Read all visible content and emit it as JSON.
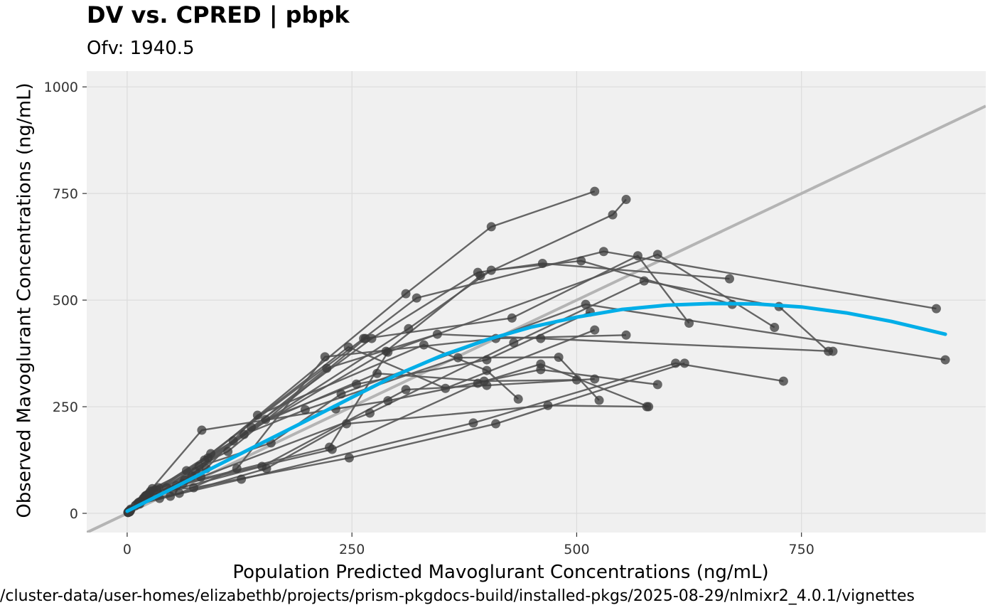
{
  "title": "DV vs. CPRED | pbpk",
  "subtitle": "Ofv: 1940.5",
  "caption": "/cluster-data/user-homes/elizabethb/projects/prism-pkgdocs-build/installed-pkgs/2025-08-29/nlmixr2_4.0.1/vignettes",
  "colors": {
    "panel_background": "#f0f0f0",
    "grid": "#dcdcdc",
    "points": "#3a3a3a",
    "lines": "#555555",
    "identity_line": "#b4b4b4",
    "smooth": "#00aee8"
  },
  "chart_data": {
    "type": "scatter",
    "xlabel": "Population Predicted Mavoglurant Concentrations (ng/mL)",
    "ylabel": "Observed Mavoglurant Concentrations (ng/mL)",
    "xlim": [
      -45,
      955
    ],
    "ylim": [
      -45,
      1037
    ],
    "x_ticks": [
      0,
      250,
      500,
      750
    ],
    "x_tick_labels": [
      "0",
      "250",
      "500",
      "750"
    ],
    "y_ticks": [
      0,
      250,
      500,
      750,
      1000
    ],
    "y_tick_labels": [
      "0",
      "250",
      "500",
      "750",
      "1000"
    ],
    "grid": true,
    "reference_line": {
      "type": "identity",
      "slope": 1,
      "intercept": 0
    },
    "subjects": [
      [
        [
          3,
          5
        ],
        [
          20,
          40
        ],
        [
          86,
          125
        ],
        [
          310,
          515
        ],
        [
          405,
          672
        ],
        [
          520,
          755
        ]
      ],
      [
        [
          2,
          4
        ],
        [
          19,
          36
        ],
        [
          80,
          110
        ],
        [
          272,
          410
        ],
        [
          390,
          565
        ],
        [
          462,
          586
        ],
        [
          670,
          550
        ]
      ],
      [
        [
          3,
          6
        ],
        [
          26,
          52
        ],
        [
          90,
          130
        ],
        [
          313,
          433
        ],
        [
          405,
          570
        ],
        [
          505,
          592
        ],
        [
          673,
          490
        ]
      ],
      [
        [
          2,
          3
        ],
        [
          17,
          30
        ],
        [
          72,
          88
        ],
        [
          222,
          340
        ],
        [
          345,
          420
        ],
        [
          460,
          410
        ],
        [
          785,
          380
        ]
      ],
      [
        [
          4,
          8
        ],
        [
          35,
          60
        ],
        [
          118,
          170
        ],
        [
          288,
          380
        ],
        [
          393,
          557
        ],
        [
          540,
          700
        ],
        [
          555,
          736
        ]
      ],
      [
        [
          2,
          5
        ],
        [
          22,
          43
        ],
        [
          93,
          140
        ],
        [
          263,
          410
        ],
        [
          322,
          505
        ],
        [
          530,
          614
        ],
        [
          900,
          480
        ]
      ],
      [
        [
          3,
          4
        ],
        [
          14,
          22
        ],
        [
          62,
          70
        ],
        [
          225,
          155
        ],
        [
          290,
          378
        ],
        [
          590,
          607
        ],
        [
          720,
          436
        ]
      ],
      [
        [
          2,
          3
        ],
        [
          16,
          29
        ],
        [
          82,
          85
        ],
        [
          270,
          235
        ],
        [
          430,
          400
        ],
        [
          575,
          545
        ],
        [
          725,
          485
        ],
        [
          780,
          380
        ]
      ],
      [
        [
          3,
          7
        ],
        [
          28,
          58
        ],
        [
          112,
          145
        ],
        [
          265,
          410
        ],
        [
          428,
          458
        ],
        [
          568,
          604
        ],
        [
          625,
          446
        ]
      ],
      [
        [
          2,
          4
        ],
        [
          12,
          24
        ],
        [
          55,
          65
        ],
        [
          228,
          150
        ],
        [
          390,
          305
        ],
        [
          460,
          350
        ],
        [
          580,
          250
        ]
      ],
      [
        [
          4,
          10
        ],
        [
          33,
          55
        ],
        [
          130,
          185
        ],
        [
          198,
          243
        ],
        [
          368,
          365
        ],
        [
          480,
          366
        ],
        [
          525,
          265
        ]
      ],
      [
        [
          2,
          3
        ],
        [
          18,
          35
        ],
        [
          66,
          100
        ],
        [
          160,
          165
        ],
        [
          238,
          280
        ],
        [
          510,
          490
        ],
        [
          910,
          360
        ]
      ],
      [
        [
          1,
          2
        ],
        [
          15,
          28
        ],
        [
          58,
          47
        ],
        [
          122,
          105
        ],
        [
          220,
          367
        ],
        [
          410,
          410
        ],
        [
          555,
          418
        ]
      ],
      [
        [
          1,
          2
        ],
        [
          10,
          20
        ],
        [
          48,
          40
        ],
        [
          155,
          105
        ],
        [
          244,
          210
        ],
        [
          468,
          253
        ],
        [
          578,
          250
        ]
      ],
      [
        [
          2,
          4
        ],
        [
          25,
          48
        ],
        [
          88,
          105
        ],
        [
          145,
          230
        ],
        [
          330,
          395
        ],
        [
          400,
          335
        ],
        [
          435,
          268
        ]
      ],
      [
        [
          3,
          6
        ],
        [
          13,
          23
        ],
        [
          44,
          60
        ],
        [
          246,
          390
        ],
        [
          354,
          293
        ],
        [
          520,
          430
        ]
      ],
      [
        [
          2,
          4
        ],
        [
          21,
          42
        ],
        [
          83,
          195
        ],
        [
          232,
          245
        ],
        [
          290,
          264
        ],
        [
          460,
          337
        ],
        [
          590,
          302
        ]
      ],
      [
        [
          2,
          5
        ],
        [
          24,
          46
        ],
        [
          76,
          98
        ],
        [
          154,
          220
        ],
        [
          255,
          303
        ],
        [
          400,
          360
        ],
        [
          515,
          472
        ]
      ],
      [
        [
          1,
          3
        ],
        [
          17,
          31
        ],
        [
          64,
          78
        ],
        [
          138,
          202
        ],
        [
          278,
          328
        ],
        [
          397,
          310
        ],
        [
          500,
          313
        ]
      ],
      [
        [
          2,
          4
        ],
        [
          29,
          53
        ],
        [
          74,
          60
        ],
        [
          247,
          130
        ],
        [
          410,
          210
        ],
        [
          620,
          352
        ]
      ],
      [
        [
          1,
          2
        ],
        [
          9,
          18
        ],
        [
          36,
          35
        ],
        [
          127,
          80
        ],
        [
          385,
          212
        ],
        [
          610,
          352
        ],
        [
          730,
          310
        ]
      ],
      [
        [
          2,
          3
        ],
        [
          13,
          26
        ],
        [
          51,
          55
        ],
        [
          150,
          110
        ],
        [
          310,
          290
        ],
        [
          400,
          300
        ],
        [
          520,
          315
        ]
      ]
    ],
    "smooth_curve": {
      "name": "",
      "x": [
        0,
        50,
        100,
        150,
        200,
        250,
        300,
        350,
        400,
        450,
        500,
        550,
        600,
        650,
        700,
        750,
        800,
        850,
        910
      ],
      "y": [
        5,
        58,
        112,
        165,
        218,
        272,
        325,
        370,
        407,
        437,
        460,
        478,
        488,
        492,
        491,
        484,
        470,
        450,
        420
      ]
    }
  }
}
